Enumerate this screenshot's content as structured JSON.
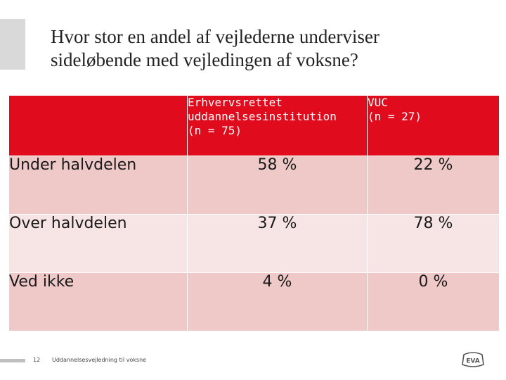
{
  "slide": {
    "title_line1": "Hvor stor en andel af vejlederne underviser",
    "title_line2": "sideløbende med vejledingen af voksne?"
  },
  "table": {
    "headers": [
      "",
      "Erhvervsrettet uddannelsesinstitution (n = 75)",
      "VUC (n = 27)"
    ],
    "header_lines": {
      "col1": [
        "Erhvervsrettet",
        "uddannelsesinstitution",
        "(n = 75)"
      ],
      "col2": [
        "VUC",
        "(n = 27)"
      ]
    },
    "rows": [
      {
        "label": "Under halvdelen",
        "erhverv": "58 %",
        "vuc": "22 %"
      },
      {
        "label": "Over halvdelen",
        "erhverv": "37 %",
        "vuc": "78 %"
      },
      {
        "label": "Ved ikke",
        "erhverv": "4 %",
        "vuc": "0 %"
      }
    ]
  },
  "footer": {
    "page_number": "12",
    "text": "Uddannelsesvejledning til voksne",
    "logo_text": "EVA"
  },
  "colors": {
    "header_red": "#e00b1c",
    "row_dark": "#efc8c8",
    "row_light": "#f7e4e4"
  }
}
